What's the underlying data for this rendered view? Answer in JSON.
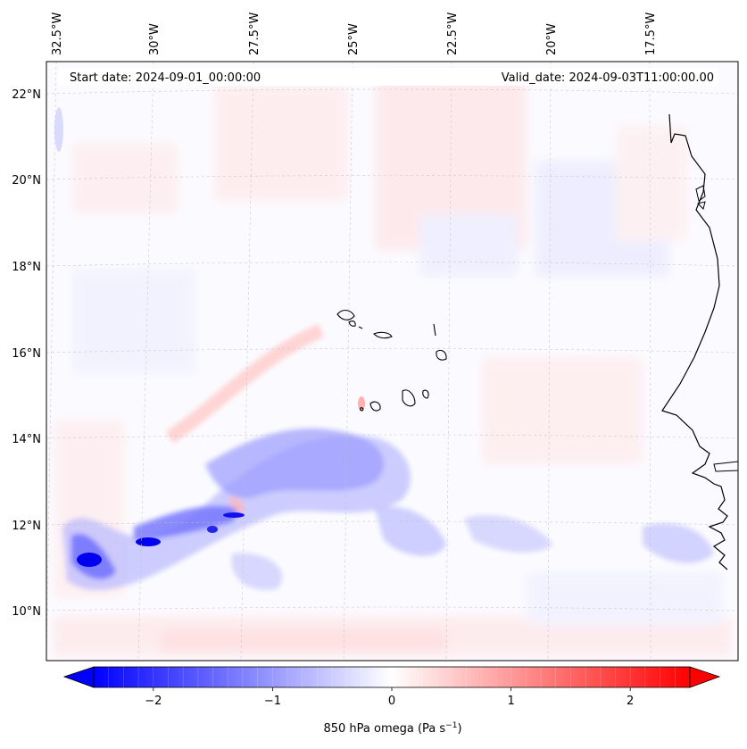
{
  "map": {
    "start_date": "Start date: 2024-09-01_00:00:00",
    "valid_date": "Valid_date: 2024-09-03T11:00:00.00",
    "longitude_labels": [
      "32.5°W",
      "30°W",
      "27.5°W",
      "25°W",
      "22.5°W",
      "20°W",
      "17.5°W"
    ],
    "latitude_labels": [
      "22°N",
      "20°N",
      "18°N",
      "16°N",
      "14°N",
      "12°N",
      "10°N"
    ],
    "field": "850 hPa omega",
    "colormap": [
      "#0000ff",
      "#ffffff",
      "#ff0000"
    ]
  },
  "colorbar": {
    "label_main": "850 hPa omega (Pa s",
    "label_exp": "−1",
    "label_close": ")",
    "ticks": [
      {
        "value": -2,
        "label": "−2"
      },
      {
        "value": -1,
        "label": "−1"
      },
      {
        "value": 0,
        "label": "0"
      },
      {
        "value": 1,
        "label": "1"
      },
      {
        "value": 2,
        "label": "2"
      }
    ],
    "range": [
      -2.5,
      2.5
    ],
    "extend": "both"
  }
}
